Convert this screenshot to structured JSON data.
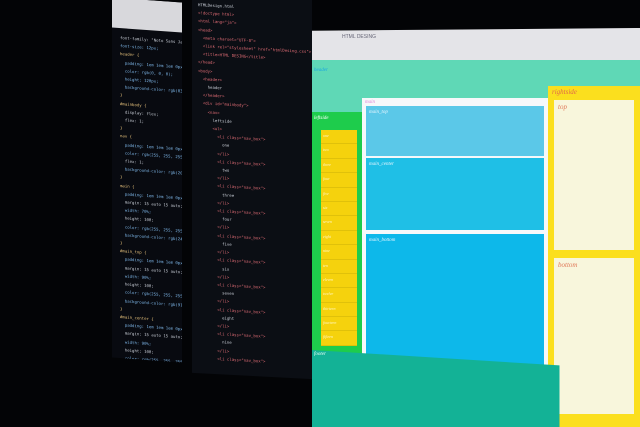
{
  "css_code": [
    "font-family: \"Noto Sans Japanese\";",
    "font-size: 12px;",
    "",
    "header {",
    "  padding: 1em 1em 1em 0px;",
    "  color: rgb(0, 0, 0);",
    "  height: 120px;",
    "  background-color: rgb(83, 222, 190);",
    "}",
    "#mainbody {",
    "  display: flex;",
    "  flex: 1;",
    "}",
    "nav {",
    "  padding: 1em 1em 1em 0px;",
    "  color: rgb(255, 255, 255);",
    "  flex: 1;",
    "  background-color: rgb(20, 210, 80);",
    "}",
    "main {",
    "  padding: 1em 1em 1em 0px;",
    "  margin: 15 auto 15 auto;",
    "  width: 70%;",
    "  height: 100;",
    "  color: rgb(255, 255, 255);",
    "  background-color: rgb(245, 245, 245);",
    "}",
    "",
    "#main_top {",
    "  padding: 1em 1em 1em 0px;",
    "  margin: 15 auto 15 auto;",
    "  width: 90%;",
    "  height: 100;",
    "  color: rgb(255, 255, 255);",
    "  background-color: rgb(91, 202, 235);",
    "}",
    "#main_center {",
    "  padding: 1em 1em 1em 0px;",
    "  margin: 15 auto 15 auto;",
    "  width: 90%;",
    "  height: 100;",
    "  color: rgb(255, 255, 255);",
    "  background-color: rgb(31, 191, 230);",
    "}",
    "footer {",
    "  padding: 1em 1em 1em 0px;"
  ],
  "html_code": [
    "HTMLDesign.html",
    "<!doctype html>",
    "<html lang=\"ja\">",
    "<head>",
    "  <meta charset=\"UTF-8\">",
    "  <link rel=\"stylesheet\" href=\"htmlDesing.css\">",
    "  <title>HTML DESING</title>",
    "</head>",
    "",
    "<body>",
    "  <header>",
    "    header",
    "  </header>",
    "  <div id=\"mainbody\">",
    "    <nav>",
    "      leftside",
    "      <ul>",
    "        <li class=\"nav_box\">",
    "          one",
    "        </li>",
    "        <li class=\"nav_box\">",
    "          two",
    "        </li>",
    "        <li class=\"nav_box\">",
    "          three",
    "        </li>",
    "        <li class=\"nav_box\">",
    "          four",
    "        </li>",
    "        <li class=\"nav_box\">",
    "          five",
    "        </li>",
    "        <li class=\"nav_box\">",
    "          six",
    "        </li>",
    "        <li class=\"nav_box\">",
    "          seven",
    "        </li>",
    "        <li class=\"nav_box\">",
    "          eight",
    "        </li>",
    "        <li class=\"nav_box\">",
    "          nine",
    "        </li>",
    "        <li class=\"nav_box\">"
  ],
  "browser": {
    "tab_title": "HTML DESING",
    "header_label": "header",
    "leftside_label": "leftside",
    "nav_items": [
      "one",
      "two",
      "three",
      "four",
      "five",
      "six",
      "seven",
      "eight",
      "nine",
      "ten",
      "eleven",
      "twelve",
      "thirteen",
      "fourteen",
      "fifteen"
    ],
    "main_label": "main",
    "main_top": "main_top",
    "main_center": "main_center",
    "main_bottom": "main_bottom",
    "rightside_label": "rightside",
    "right_top": "top",
    "right_bottom": "bottom",
    "footer_label": "footer"
  },
  "colors": {
    "header": "#5fd8b6",
    "leftside": "#1ecc4c",
    "nav": "#f5d20d",
    "main_top": "#5bc8e8",
    "main_center": "#1fbfe6",
    "main_bottom": "#0db8ea",
    "rightside": "#fbdf1e",
    "footer": "#13b296"
  }
}
